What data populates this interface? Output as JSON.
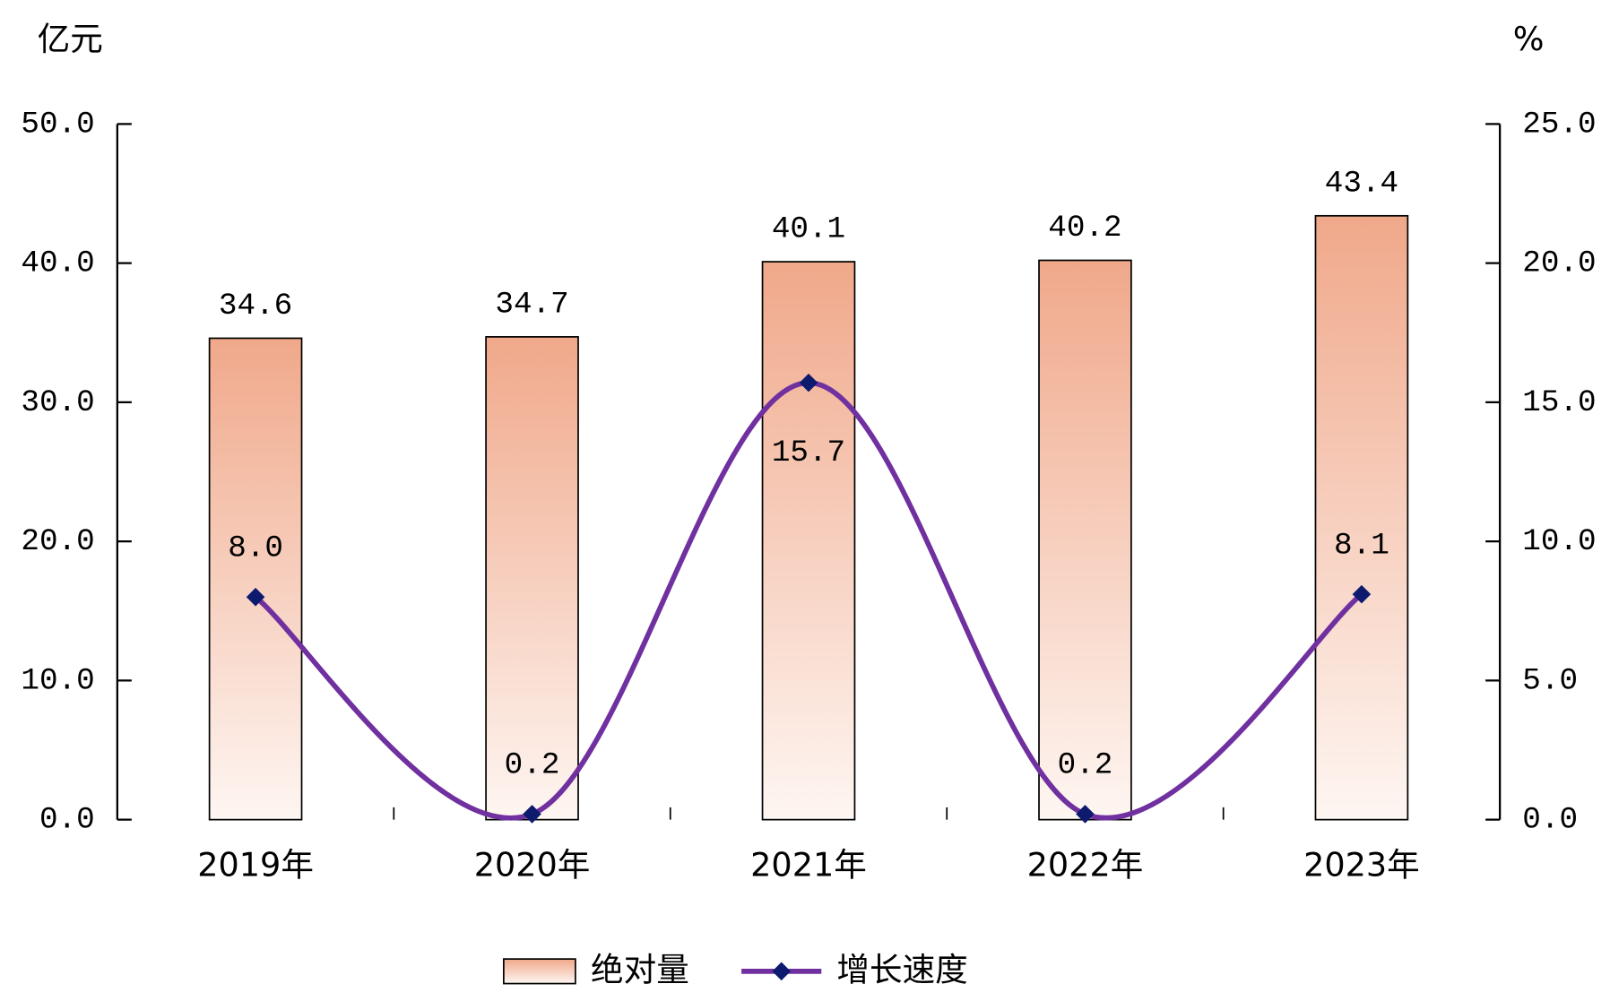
{
  "chart_data": {
    "type": "bar",
    "y_unit": "亿元",
    "y2_unit": "%",
    "categories": [
      "2019年",
      "2020年",
      "2021年",
      "2022年",
      "2023年"
    ],
    "series": [
      {
        "name": "绝对量",
        "type": "bar",
        "color": "#f0a88a",
        "values": [
          34.6,
          34.7,
          40.1,
          40.2,
          43.4
        ]
      },
      {
        "name": "增长速度",
        "type": "line",
        "axis": "y2",
        "color": "#7030a0",
        "marker_color": "#0d1a6e",
        "values": [
          8.0,
          0.2,
          15.7,
          0.2,
          8.1
        ],
        "value_labels": [
          "8.0",
          "0.2",
          "15.7",
          "0.2",
          "8.1"
        ]
      }
    ],
    "ylim": [
      0,
      50
    ],
    "yticks": [
      {
        "value": 0,
        "label": "0.0"
      },
      {
        "value": 10,
        "label": "10.0"
      },
      {
        "value": 20,
        "label": "20.0"
      },
      {
        "value": 30,
        "label": "30.0"
      },
      {
        "value": 40,
        "label": "40.0"
      },
      {
        "value": 50,
        "label": "50.0"
      }
    ],
    "y2lim": [
      0,
      25
    ],
    "y2ticks": [
      {
        "value": 0,
        "label": "0.0"
      },
      {
        "value": 5,
        "label": "5.0"
      },
      {
        "value": 10,
        "label": "10.0"
      },
      {
        "value": 15,
        "label": "15.0"
      },
      {
        "value": 20,
        "label": "20.0"
      },
      {
        "value": 25,
        "label": "25.0"
      }
    ],
    "legend": "bottom"
  }
}
